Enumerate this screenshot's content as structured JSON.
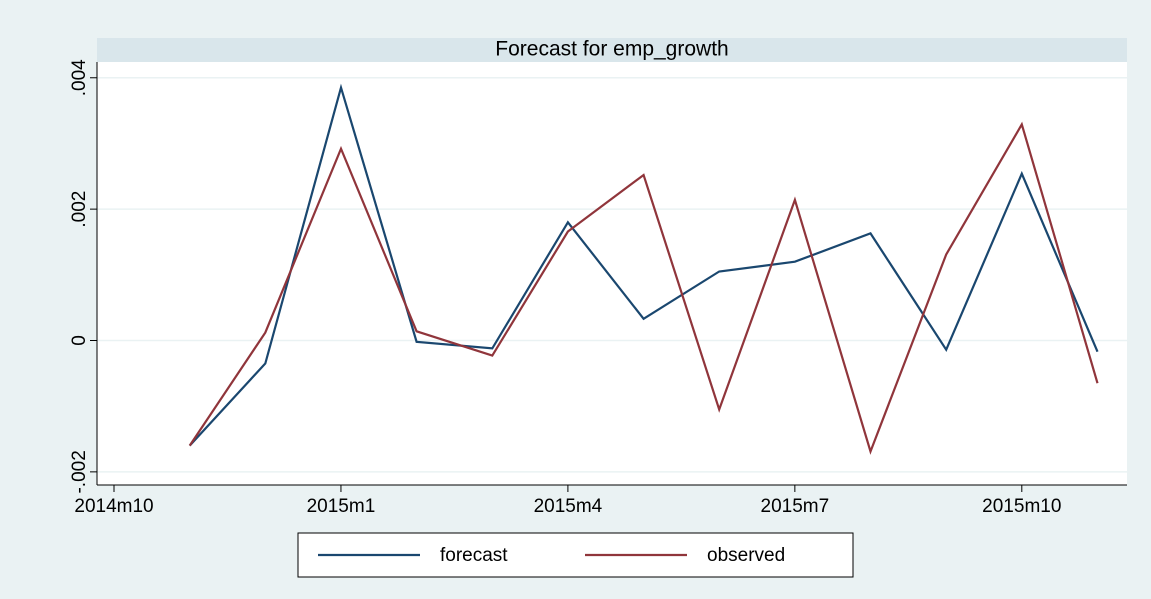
{
  "chart_data": {
    "type": "line",
    "title": "Forecast for emp_growth",
    "categories": [
      "2014m10",
      null,
      null,
      "2015m1",
      null,
      null,
      "2015m4",
      null,
      null,
      "2015m7",
      null,
      null,
      "2015m10",
      null
    ],
    "series": [
      {
        "name": "forecast",
        "color": "#1a476f",
        "values": [
          null,
          -0.0016,
          -0.00035,
          0.00385,
          -2e-05,
          -0.00012,
          0.0018,
          0.00033,
          0.00105,
          0.0012,
          0.00163,
          -0.00014,
          0.00254,
          -0.00017
        ]
      },
      {
        "name": "observed",
        "color": "#90353b",
        "values": [
          null,
          -0.0016,
          0.00012,
          0.00292,
          0.00014,
          -0.00023,
          0.00166,
          0.00252,
          -0.00105,
          0.00214,
          -0.00169,
          0.00131,
          0.00329,
          -0.00065
        ]
      }
    ],
    "ylim": [
      -0.0022,
      0.00424
    ],
    "yticks": [
      {
        "value": -0.002,
        "label": "-.002"
      },
      0,
      {
        "value": 0.002,
        "label": ".002"
      },
      {
        "value": 0.004,
        "label": ".004"
      }
    ],
    "grid": true,
    "legend": "bottom"
  }
}
